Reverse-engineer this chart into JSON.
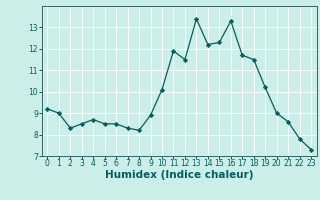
{
  "xlabel": "Humidex (Indice chaleur)",
  "x_values": [
    0,
    1,
    2,
    3,
    4,
    5,
    6,
    7,
    8,
    9,
    10,
    11,
    12,
    13,
    14,
    15,
    16,
    17,
    18,
    19,
    20,
    21,
    22,
    23
  ],
  "y_values": [
    9.2,
    9.0,
    8.3,
    8.5,
    8.7,
    8.5,
    8.5,
    8.3,
    8.2,
    8.9,
    10.1,
    11.9,
    11.5,
    13.4,
    12.2,
    12.3,
    13.3,
    11.7,
    11.5,
    10.2,
    9.0,
    8.6,
    7.8,
    7.3
  ],
  "ylim": [
    7,
    14
  ],
  "xlim": [
    -0.5,
    23.5
  ],
  "yticks": [
    7,
    8,
    9,
    10,
    11,
    12,
    13
  ],
  "xticks": [
    0,
    1,
    2,
    3,
    4,
    5,
    6,
    7,
    8,
    9,
    10,
    11,
    12,
    13,
    14,
    15,
    16,
    17,
    18,
    19,
    20,
    21,
    22,
    23
  ],
  "line_color": "#006060",
  "marker": "D",
  "marker_size": 2.2,
  "bg_color": "#cceee8",
  "grid_color": "#ffffff",
  "axis_color": "#336666",
  "tick_color": "#006060",
  "label_color": "#006060",
  "tick_fontsize": 5.5,
  "xlabel_fontsize": 7.5
}
